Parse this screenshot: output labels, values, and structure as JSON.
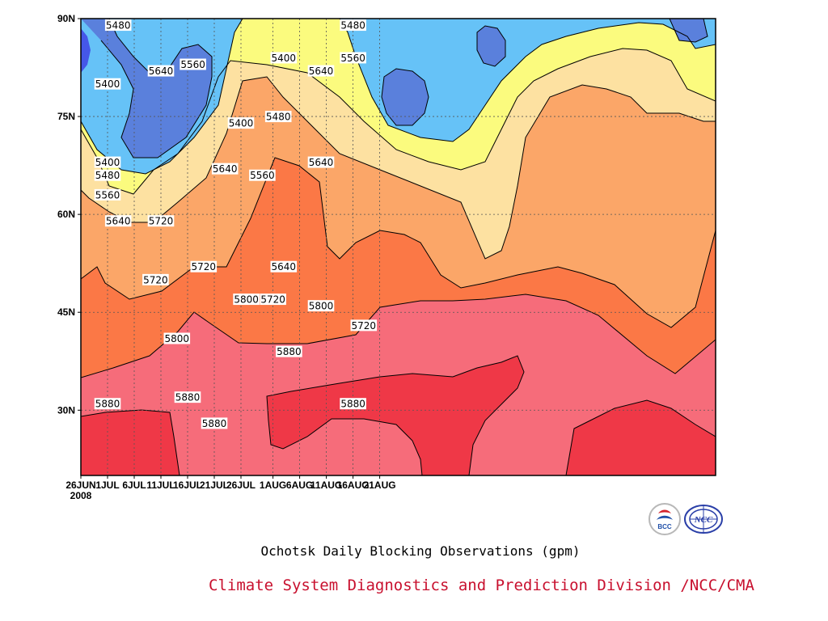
{
  "chart_data": {
    "type": "heatmap",
    "subtype": "filled-contour",
    "title": "Ochotsk Daily Blocking Observations (gpm)",
    "credit": "Climate System Diagnostics and Prediction Division /NCC/CMA",
    "xlabel": "",
    "ylabel": "",
    "x_tick_labels": [
      "26JUN",
      "1JUL",
      "6JUL",
      "11JUL",
      "16JUL",
      "21JUL",
      "26JUL",
      "1AUG",
      "6AUG",
      "11AUG",
      "16AUG",
      "21AUG"
    ],
    "x_year_label": "2008",
    "y_tick_labels": [
      "90N",
      "75N",
      "60N",
      "45N",
      "30N"
    ],
    "grid": true,
    "contour_levels": [
      5400,
      5480,
      5560,
      5640,
      5720,
      5800,
      5880
    ],
    "fill_colors": {
      "below_5400": "#5a80dc",
      "5400_5480": "#66c2f7",
      "5480_5560": "#fbfb7e",
      "5560_5640": "#fde1a1",
      "5640_5720": "#fba668",
      "5720_5800": "#fb7846",
      "5800_5880": "#f66c7a",
      "above_5880": "#ef3847",
      "minimum_core": "#4557e8"
    },
    "contour_labels": [
      {
        "x": "3JUL",
        "y": "89N",
        "value": "5480"
      },
      {
        "x": "1JUL",
        "y": "80N",
        "value": "5400"
      },
      {
        "x": "1JUL",
        "y": "68N",
        "value": "5400"
      },
      {
        "x": "1JUL",
        "y": "66N",
        "value": "5480"
      },
      {
        "x": "1JUL",
        "y": "63N",
        "value": "5560"
      },
      {
        "x": "3JUL",
        "y": "59N",
        "value": "5640"
      },
      {
        "x": "11JUL",
        "y": "82N",
        "value": "5640"
      },
      {
        "x": "17JUL",
        "y": "83N",
        "value": "5560"
      },
      {
        "x": "11JUL",
        "y": "59N",
        "value": "5720"
      },
      {
        "x": "10JUL",
        "y": "50N",
        "value": "5720"
      },
      {
        "x": "19JUL",
        "y": "52N",
        "value": "5720"
      },
      {
        "x": "23JUL",
        "y": "67N",
        "value": "5640"
      },
      {
        "x": "26JUL",
        "y": "74N",
        "value": "5400"
      },
      {
        "x": "30JUL",
        "y": "66N",
        "value": "5560"
      },
      {
        "x": "2AUG",
        "y": "75N",
        "value": "5480"
      },
      {
        "x": "3AUG",
        "y": "84N",
        "value": "5400"
      },
      {
        "x": "3AUG",
        "y": "52N",
        "value": "5640"
      },
      {
        "x": "10AUG",
        "y": "82N",
        "value": "5640"
      },
      {
        "x": "10AUG",
        "y": "68N",
        "value": "5640"
      },
      {
        "x": "16AUG",
        "y": "89N",
        "value": "5480"
      },
      {
        "x": "16AUG",
        "y": "84N",
        "value": "5560"
      },
      {
        "x": "27JUL",
        "y": "47N",
        "value": "5800"
      },
      {
        "x": "1AUG",
        "y": "47N",
        "value": "5720"
      },
      {
        "x": "10AUG",
        "y": "46N",
        "value": "5800"
      },
      {
        "x": "18AUG",
        "y": "43N",
        "value": "5720"
      },
      {
        "x": "14JUL",
        "y": "41N",
        "value": "5800"
      },
      {
        "x": "4AUG",
        "y": "39N",
        "value": "5880"
      },
      {
        "x": "1JUL",
        "y": "31N",
        "value": "5880"
      },
      {
        "x": "16JUL",
        "y": "32N",
        "value": "5880"
      },
      {
        "x": "21JUL",
        "y": "28N",
        "value": "5880"
      },
      {
        "x": "16AUG",
        "y": "31N",
        "value": "5880"
      }
    ]
  },
  "logos": {
    "left": "BCC",
    "right": "NCC"
  }
}
